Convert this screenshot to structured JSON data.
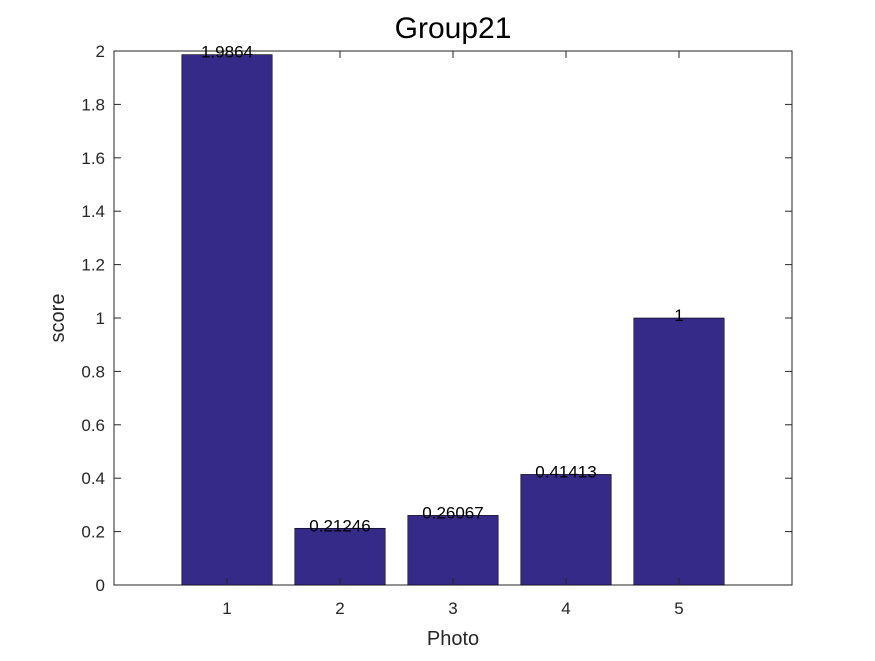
{
  "chart_data": {
    "type": "bar",
    "title": "Group21",
    "xlabel": "Photo",
    "ylabel": "score",
    "categories": [
      "1",
      "2",
      "3",
      "4",
      "5"
    ],
    "values": [
      1.9864,
      0.21246,
      0.26067,
      0.41413,
      1
    ],
    "data_labels": [
      "1.9864",
      "0.21246",
      "0.26067",
      "0.41413",
      "1"
    ],
    "ylim": [
      0,
      2
    ],
    "xlim": [
      0,
      6
    ],
    "yticks": [
      "0",
      "0.2",
      "0.4",
      "0.6",
      "0.8",
      "1",
      "1.2",
      "1.4",
      "1.6",
      "1.8",
      "2"
    ],
    "bar_color": "#352a87",
    "grid": false,
    "legend": "none"
  }
}
